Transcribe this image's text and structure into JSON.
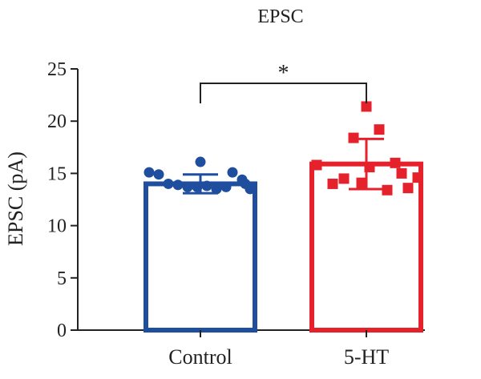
{
  "chart_data": {
    "type": "bar",
    "title": "EPSC",
    "xlabel": "",
    "ylabel": "EPSC (pA)",
    "ylim": [
      0,
      25
    ],
    "yticks": [
      0,
      5,
      10,
      15,
      20,
      25
    ],
    "categories": [
      "Control",
      "5-HT"
    ],
    "values": [
      14.0,
      15.9
    ],
    "error": [
      0.9,
      2.4
    ],
    "points": [
      [
        15.1,
        14.9,
        14.0,
        13.9,
        13.7,
        13.7,
        13.8,
        16.1,
        13.5,
        13.7,
        15.1,
        14.4,
        13.5,
        14.0
      ],
      [
        15.8,
        14.0,
        14.5,
        18.4,
        14.1,
        15.6,
        19.2,
        13.4,
        16.0,
        15.0,
        13.6,
        21.4,
        14.6
      ]
    ],
    "significance": "*",
    "colors": [
      "#1f4e9e",
      "#e5222b"
    ],
    "markers": [
      "circle",
      "square"
    ],
    "grid": false,
    "legend": "none"
  }
}
